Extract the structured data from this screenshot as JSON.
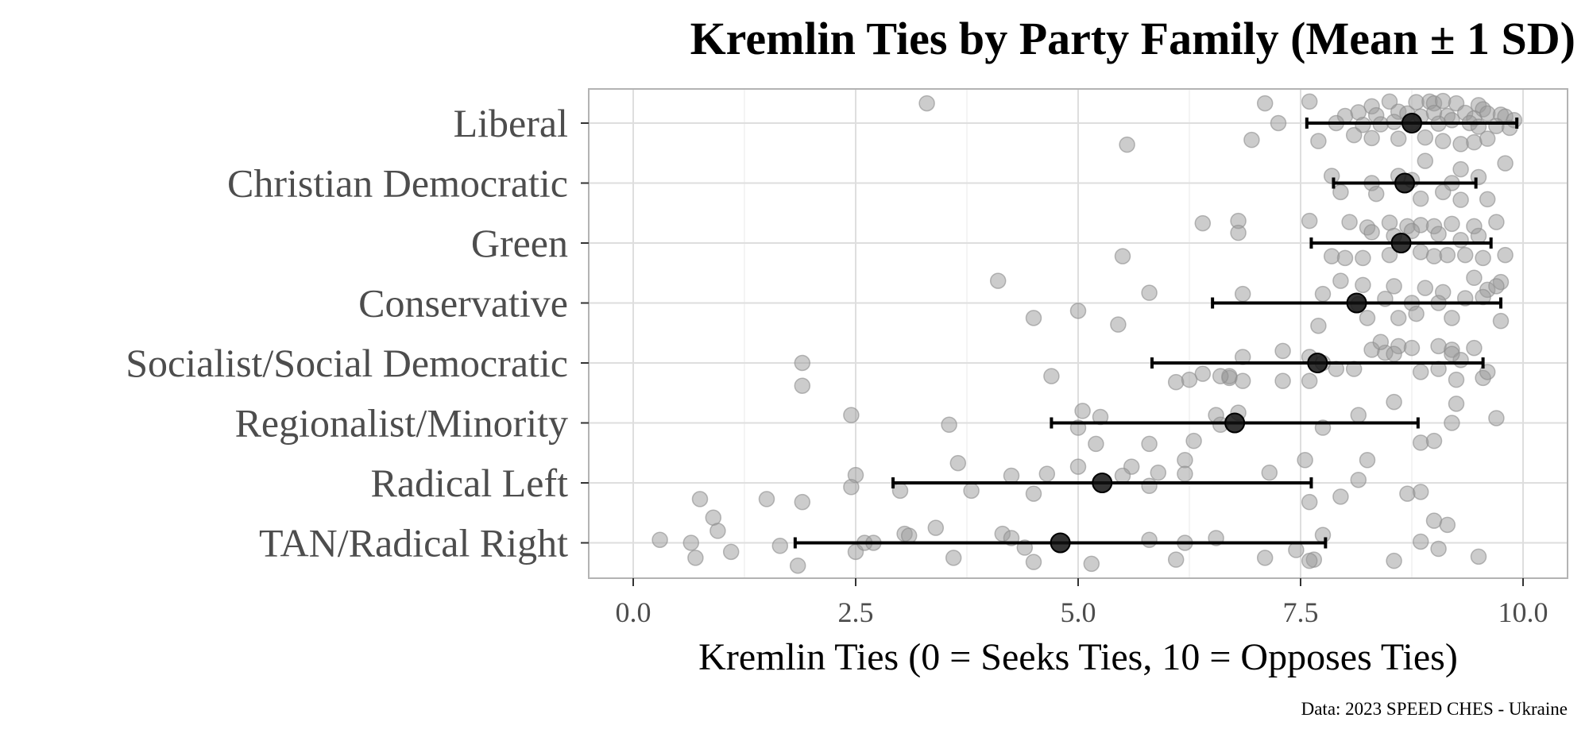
{
  "chart_data": {
    "type": "scatter",
    "title": "Kremlin Ties by Party Family (Mean ± 1 SD)",
    "xlabel": "Kremlin Ties (0 = Seeks Ties, 10 = Opposes Ties)",
    "ylabel": "",
    "caption": "Data: 2023 SPEED CHES - Ukraine",
    "xlim": [
      -0.5,
      10.5
    ],
    "xticks": [
      0,
      2.5,
      5,
      7.5,
      10
    ],
    "xtick_labels": [
      "0.0",
      "2.5",
      "5.0",
      "7.5",
      "10.0"
    ],
    "grid": true,
    "point_color": "#999999",
    "summary_color": "#000000",
    "categories": [
      "Liberal",
      "Christian Democratic",
      "Green",
      "Conservative",
      "Socialist/Social Democratic",
      "Regionalist/Minority",
      "Radical Left",
      "TAN/Radical Right"
    ],
    "summary": [
      {
        "category": "Liberal",
        "mean": 8.75,
        "sd": 1.18
      },
      {
        "category": "Christian Democratic",
        "mean": 8.67,
        "sd": 0.8
      },
      {
        "category": "Green",
        "mean": 8.63,
        "sd": 1.01
      },
      {
        "category": "Conservative",
        "mean": 8.13,
        "sd": 1.62
      },
      {
        "category": "Socialist/Social Democratic",
        "mean": 7.69,
        "sd": 1.86
      },
      {
        "category": "Regionalist/Minority",
        "mean": 6.76,
        "sd": 2.06
      },
      {
        "category": "Radical Left",
        "mean": 5.27,
        "sd": 2.35
      },
      {
        "category": "TAN/Radical Right",
        "mean": 4.8,
        "sd": 2.98
      }
    ],
    "points": {
      "Liberal": [
        [
          3.3,
          0.33
        ],
        [
          7.1,
          0.33
        ],
        [
          7.6,
          0.36
        ],
        [
          8.3,
          0.28
        ],
        [
          8.5,
          0.36
        ],
        [
          8.8,
          0.35
        ],
        [
          8.95,
          0.36
        ],
        [
          9.0,
          0.33
        ],
        [
          9.1,
          0.37
        ],
        [
          9.25,
          0.33
        ],
        [
          9.5,
          0.3
        ],
        [
          9.55,
          0.23
        ],
        [
          8.0,
          0.12
        ],
        [
          8.15,
          0.18
        ],
        [
          8.35,
          0.13
        ],
        [
          8.6,
          0.19
        ],
        [
          8.7,
          0.16
        ],
        [
          8.85,
          0.11
        ],
        [
          9.0,
          0.17
        ],
        [
          9.15,
          0.12
        ],
        [
          9.35,
          0.17
        ],
        [
          9.45,
          0.08
        ],
        [
          9.6,
          0.16
        ],
        [
          9.75,
          0.14
        ],
        [
          9.8,
          0.11
        ],
        [
          9.9,
          0.05
        ],
        [
          7.25,
          0.0
        ],
        [
          7.9,
          0.0
        ],
        [
          8.2,
          -0.03
        ],
        [
          8.4,
          -0.02
        ],
        [
          8.55,
          0.02
        ],
        [
          8.75,
          0.0
        ],
        [
          9.05,
          -0.01
        ],
        [
          9.2,
          0.05
        ],
        [
          9.4,
          0.0
        ],
        [
          9.5,
          -0.06
        ],
        [
          9.7,
          -0.05
        ],
        [
          9.85,
          -0.08
        ],
        [
          5.55,
          -0.36
        ],
        [
          6.95,
          -0.28
        ],
        [
          7.7,
          -0.3
        ],
        [
          8.1,
          -0.2
        ],
        [
          8.3,
          -0.25
        ],
        [
          8.6,
          -0.26
        ],
        [
          8.9,
          -0.24
        ],
        [
          9.1,
          -0.3
        ],
        [
          9.3,
          -0.35
        ],
        [
          9.45,
          -0.32
        ],
        [
          9.6,
          -0.26
        ]
      ],
      "Christian Democratic": [
        [
          9.8,
          0.33
        ],
        [
          8.9,
          0.37
        ],
        [
          9.3,
          0.23
        ],
        [
          7.85,
          0.12
        ],
        [
          8.3,
          0.0
        ],
        [
          8.6,
          0.12
        ],
        [
          8.75,
          0.05
        ],
        [
          9.2,
          0.0
        ],
        [
          9.5,
          0.1
        ],
        [
          7.95,
          -0.15
        ],
        [
          8.35,
          -0.18
        ],
        [
          8.85,
          -0.26
        ],
        [
          9.1,
          -0.15
        ],
        [
          9.3,
          -0.28
        ],
        [
          9.6,
          -0.27
        ]
      ],
      "Green": [
        [
          6.4,
          0.33
        ],
        [
          6.8,
          0.37
        ],
        [
          7.6,
          0.37
        ],
        [
          8.05,
          0.35
        ],
        [
          8.25,
          0.26
        ],
        [
          8.5,
          0.34
        ],
        [
          8.7,
          0.28
        ],
        [
          8.85,
          0.3
        ],
        [
          9.0,
          0.28
        ],
        [
          9.2,
          0.32
        ],
        [
          9.45,
          0.28
        ],
        [
          9.7,
          0.35
        ],
        [
          6.8,
          0.17
        ],
        [
          8.3,
          0.18
        ],
        [
          8.55,
          0.12
        ],
        [
          8.75,
          0.2
        ],
        [
          9.05,
          0.15
        ],
        [
          9.3,
          0.05
        ],
        [
          9.5,
          0.12
        ],
        [
          5.5,
          -0.22
        ],
        [
          7.85,
          -0.22
        ],
        [
          8.0,
          -0.25
        ],
        [
          8.2,
          -0.25
        ],
        [
          8.5,
          -0.2
        ],
        [
          8.85,
          -0.15
        ],
        [
          9.0,
          -0.22
        ],
        [
          9.15,
          -0.2
        ],
        [
          9.35,
          -0.2
        ],
        [
          9.55,
          -0.25
        ],
        [
          9.8,
          -0.2
        ]
      ],
      "Conservative": [
        [
          4.1,
          0.37
        ],
        [
          5.8,
          0.17
        ],
        [
          6.85,
          0.15
        ],
        [
          7.95,
          0.37
        ],
        [
          8.2,
          0.3
        ],
        [
          8.55,
          0.28
        ],
        [
          8.9,
          0.25
        ],
        [
          9.1,
          0.18
        ],
        [
          9.45,
          0.42
        ],
        [
          9.6,
          0.22
        ],
        [
          9.75,
          0.35
        ],
        [
          9.7,
          0.28
        ],
        [
          7.75,
          0.15
        ],
        [
          8.15,
          -0.02
        ],
        [
          8.45,
          0.07
        ],
        [
          8.75,
          0.0
        ],
        [
          9.05,
          0.0
        ],
        [
          9.35,
          0.08
        ],
        [
          9.55,
          0.1
        ],
        [
          4.5,
          -0.25
        ],
        [
          5.0,
          -0.13
        ],
        [
          5.45,
          -0.36
        ],
        [
          7.7,
          -0.38
        ],
        [
          8.25,
          -0.25
        ],
        [
          8.6,
          -0.25
        ],
        [
          8.8,
          -0.18
        ],
        [
          9.2,
          -0.25
        ],
        [
          9.75,
          -0.3
        ]
      ],
      "Socialist/Social Democratic": [
        [
          1.9,
          0.0
        ],
        [
          1.9,
          -0.38
        ],
        [
          4.7,
          -0.22
        ],
        [
          6.1,
          -0.32
        ],
        [
          6.4,
          -0.18
        ],
        [
          6.7,
          -0.25
        ],
        [
          6.7,
          -0.22
        ],
        [
          6.85,
          -0.3
        ],
        [
          7.3,
          -0.3
        ],
        [
          7.6,
          -0.3
        ],
        [
          7.75,
          0.0
        ],
        [
          7.9,
          -0.1
        ],
        [
          8.1,
          -0.1
        ],
        [
          6.25,
          -0.28
        ],
        [
          6.6,
          -0.22
        ],
        [
          6.85,
          0.1
        ],
        [
          7.3,
          0.2
        ],
        [
          7.6,
          0.1
        ],
        [
          8.3,
          0.22
        ],
        [
          8.45,
          0.17
        ],
        [
          8.6,
          0.28
        ],
        [
          8.75,
          0.25
        ],
        [
          9.05,
          0.28
        ],
        [
          9.2,
          0.22
        ],
        [
          9.3,
          0.05
        ],
        [
          9.45,
          0.25
        ],
        [
          8.4,
          0.35
        ],
        [
          8.55,
          0.15
        ],
        [
          8.85,
          -0.15
        ],
        [
          9.05,
          -0.1
        ],
        [
          9.25,
          -0.28
        ],
        [
          9.55,
          -0.25
        ],
        [
          9.6,
          -0.15
        ],
        [
          9.2,
          0.15
        ]
      ],
      "Regionalist/Minority": [
        [
          2.45,
          0.13
        ],
        [
          3.55,
          -0.03
        ],
        [
          5.05,
          0.2
        ],
        [
          5.25,
          0.1
        ],
        [
          5.0,
          -0.08
        ],
        [
          6.55,
          0.13
        ],
        [
          6.8,
          0.17
        ],
        [
          6.6,
          -0.03
        ],
        [
          7.75,
          -0.08
        ],
        [
          8.15,
          0.13
        ],
        [
          8.55,
          0.35
        ],
        [
          9.25,
          0.32
        ],
        [
          9.2,
          0.0
        ],
        [
          9.7,
          0.08
        ],
        [
          5.2,
          -0.35
        ],
        [
          5.8,
          -0.35
        ],
        [
          6.3,
          -0.3
        ],
        [
          8.85,
          -0.33
        ],
        [
          9.0,
          -0.3
        ]
      ],
      "Radical Left": [
        [
          3.65,
          0.33
        ],
        [
          5.6,
          0.27
        ],
        [
          6.2,
          0.38
        ],
        [
          7.55,
          0.38
        ],
        [
          8.25,
          0.38
        ],
        [
          2.5,
          0.13
        ],
        [
          4.25,
          0.12
        ],
        [
          4.65,
          0.15
        ],
        [
          5.0,
          0.27
        ],
        [
          5.5,
          0.12
        ],
        [
          5.9,
          0.17
        ],
        [
          6.2,
          0.15
        ],
        [
          7.15,
          0.17
        ],
        [
          8.15,
          0.05
        ],
        [
          2.45,
          -0.07
        ],
        [
          3.0,
          -0.13
        ],
        [
          3.8,
          -0.13
        ],
        [
          4.5,
          -0.18
        ],
        [
          5.8,
          -0.05
        ],
        [
          7.6,
          -0.32
        ],
        [
          7.95,
          -0.23
        ],
        [
          8.7,
          -0.18
        ],
        [
          8.85,
          -0.15
        ],
        [
          0.75,
          -0.27
        ],
        [
          1.5,
          -0.27
        ],
        [
          1.9,
          -0.32
        ]
      ],
      "TAN/Radical Right": [
        [
          0.9,
          0.42
        ],
        [
          0.95,
          0.2
        ],
        [
          0.3,
          0.05
        ],
        [
          0.65,
          0.0
        ],
        [
          0.7,
          -0.25
        ],
        [
          1.1,
          -0.15
        ],
        [
          1.65,
          -0.05
        ],
        [
          1.85,
          -0.38
        ],
        [
          2.5,
          -0.15
        ],
        [
          2.6,
          0.0
        ],
        [
          2.7,
          0.0
        ],
        [
          3.05,
          0.15
        ],
        [
          3.1,
          0.12
        ],
        [
          3.4,
          0.25
        ],
        [
          4.15,
          0.15
        ],
        [
          4.25,
          0.08
        ],
        [
          4.4,
          -0.08
        ],
        [
          4.5,
          -0.32
        ],
        [
          3.6,
          -0.25
        ],
        [
          5.15,
          -0.35
        ],
        [
          5.8,
          0.05
        ],
        [
          6.1,
          -0.28
        ],
        [
          6.2,
          0.0
        ],
        [
          6.55,
          0.08
        ],
        [
          7.1,
          -0.25
        ],
        [
          7.45,
          -0.12
        ],
        [
          7.65,
          -0.28
        ],
        [
          7.6,
          -0.3
        ],
        [
          7.75,
          0.13
        ],
        [
          8.55,
          -0.3
        ],
        [
          8.85,
          0.02
        ],
        [
          9.0,
          0.37
        ],
        [
          9.05,
          -0.1
        ],
        [
          9.15,
          0.3
        ],
        [
          9.5,
          -0.23
        ]
      ]
    }
  }
}
